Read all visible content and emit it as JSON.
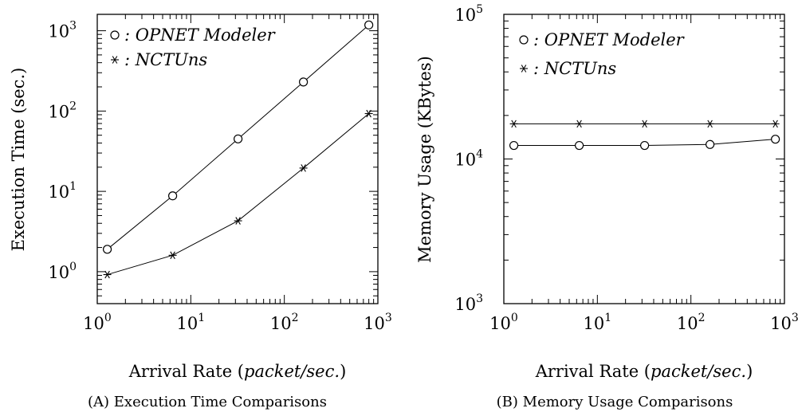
{
  "chart_data": [
    {
      "type": "line",
      "caption": "(A) Execution Time Comparisons",
      "ylabel": "Execution Time (sec.)",
      "xlabel_prefix": "Arrival Rate (",
      "xlabel_unit": "packet/sec.",
      "xlabel_suffix": ")",
      "xscale": "log",
      "yscale": "log",
      "xlim": [
        1,
        1000
      ],
      "ylim": [
        0.4,
        1600
      ],
      "xticks": [
        1,
        10,
        100,
        1000
      ],
      "yticks": [
        1,
        10,
        100,
        1000
      ],
      "xtick_labels": [
        "10",
        "10",
        "10",
        "10"
      ],
      "xtick_exps": [
        "0",
        "1",
        "2",
        "3"
      ],
      "ytick_labels": [
        "10",
        "10",
        "10",
        "10"
      ],
      "ytick_exps": [
        "0",
        "1",
        "2",
        "3"
      ],
      "legend_position": "top-left",
      "series": [
        {
          "name": ": OPNET Modeler",
          "marker": "circle",
          "x": [
            1.28,
            6.4,
            32,
            160,
            800
          ],
          "y": [
            1.9,
            8.8,
            45,
            230,
            1180
          ]
        },
        {
          "name": ": NCTUns",
          "marker": "star",
          "x": [
            1.28,
            6.4,
            32,
            160,
            800
          ],
          "y": [
            0.92,
            1.6,
            4.3,
            19.5,
            93
          ]
        }
      ]
    },
    {
      "type": "line",
      "caption": "(B) Memory Usage Comparisons",
      "ylabel": "Memory Usage (KBytes)",
      "xlabel_prefix": "Arrival Rate (",
      "xlabel_unit": "packet/sec.",
      "xlabel_suffix": ")",
      "xscale": "log",
      "yscale": "log",
      "xlim": [
        1,
        1000
      ],
      "ylim": [
        1000,
        100000
      ],
      "xticks": [
        1,
        10,
        100,
        1000
      ],
      "yticks": [
        1000,
        10000,
        100000
      ],
      "xtick_labels": [
        "10",
        "10",
        "10",
        "10"
      ],
      "xtick_exps": [
        "0",
        "1",
        "2",
        "3"
      ],
      "ytick_labels": [
        "10",
        "10",
        "10"
      ],
      "ytick_exps": [
        "3",
        "4",
        "5"
      ],
      "legend_position": "top-left",
      "series": [
        {
          "name": ": OPNET Modeler",
          "marker": "circle",
          "x": [
            1.28,
            6.4,
            32,
            160,
            800
          ],
          "y": [
            12400,
            12400,
            12400,
            12600,
            13700
          ]
        },
        {
          "name": ": NCTUns",
          "marker": "star",
          "x": [
            1.28,
            6.4,
            32,
            160,
            800
          ],
          "y": [
            17500,
            17500,
            17500,
            17500,
            17500
          ]
        }
      ]
    }
  ]
}
